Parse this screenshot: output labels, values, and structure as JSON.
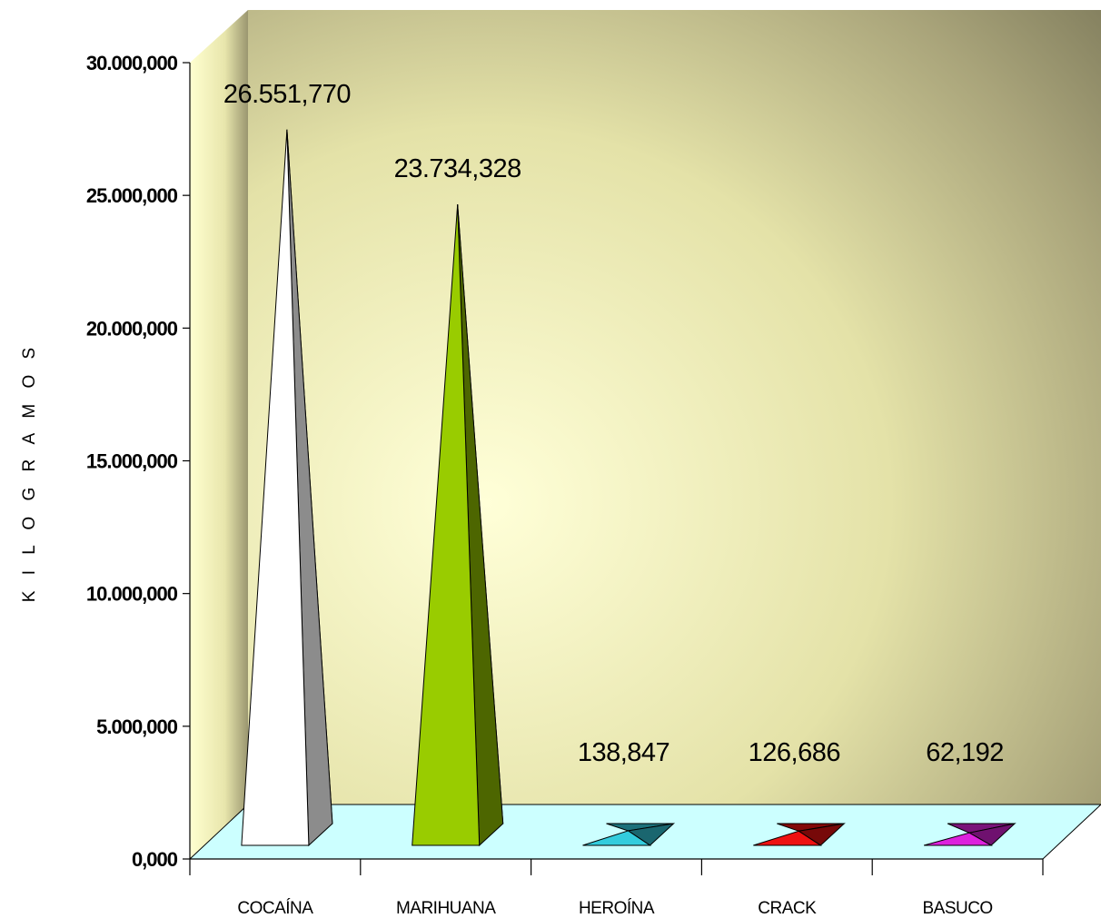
{
  "chart_data": {
    "type": "bar",
    "style": "3d-pyramid",
    "categories": [
      "COCAÍNA",
      "MARIHUANA",
      "HEROÍNA",
      "CRACK",
      "BASUCO"
    ],
    "values": [
      26551.77,
      23734.328,
      138.847,
      126.686,
      62.192
    ],
    "data_labels": [
      "26.551,770",
      "23.734,328",
      "138,847",
      "126,686",
      "62,192"
    ],
    "ylabel": "K I L O G R A M O S",
    "xlabel": "",
    "ylim": [
      0,
      30000
    ],
    "yticks": [
      0,
      5000,
      10000,
      15000,
      20000,
      25000,
      30000
    ],
    "ytick_labels": [
      "0,000",
      "5.000,000",
      "10.000,000",
      "15.000,000",
      "20.000,000",
      "25.000,000",
      "30.000,000"
    ],
    "grid": false,
    "legend": "none",
    "colors": {
      "COCAÍNA": "#ffffff",
      "MARIHUANA": "#99cc00",
      "HEROÍNA": "#33ccdd",
      "CRACK": "#ee1111",
      "BASUCO": "#dd22dd"
    },
    "floor_color": "#ccffff",
    "wall_color": "#ffffcc"
  }
}
